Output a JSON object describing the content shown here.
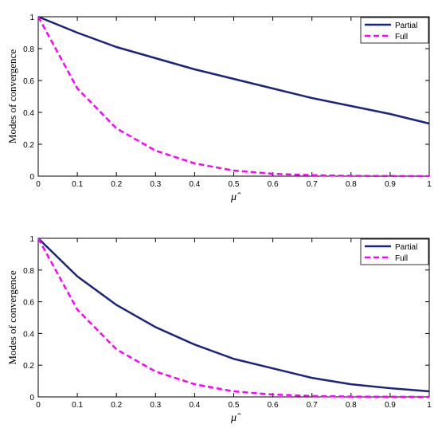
{
  "chart_data": [
    {
      "type": "line",
      "xlabel": "μ̂",
      "ylabel": "Modes of convergence",
      "xlim": [
        0,
        1
      ],
      "ylim": [
        0,
        1
      ],
      "xticks": [
        "0",
        "0.1",
        "0.2",
        "0.3",
        "0.4",
        "0.5",
        "0.6",
        "0.7",
        "0.8",
        "0.9",
        "1"
      ],
      "yticks": [
        "0",
        "0.2",
        "0.4",
        "0.6",
        "0.8",
        "1"
      ],
      "legend_position": "top-right",
      "x": [
        0,
        0.1,
        0.2,
        0.3,
        0.4,
        0.5,
        0.6,
        0.7,
        0.8,
        0.9,
        1.0
      ],
      "series": [
        {
          "name": "Partial",
          "color": "#1a237e",
          "style": "solid",
          "values": [
            1.0,
            0.9,
            0.81,
            0.74,
            0.67,
            0.61,
            0.55,
            0.49,
            0.44,
            0.39,
            0.33
          ]
        },
        {
          "name": "Full",
          "color": "#ff00ff",
          "style": "dashed",
          "values": [
            1.0,
            0.55,
            0.3,
            0.16,
            0.08,
            0.035,
            0.015,
            0.006,
            0.002,
            0.001,
            0.0
          ]
        }
      ]
    },
    {
      "type": "line",
      "xlabel": "μ̂",
      "ylabel": "Modes of convergence",
      "xlim": [
        0,
        1
      ],
      "ylim": [
        0,
        1
      ],
      "xticks": [
        "0",
        "0.1",
        "0.2",
        "0.3",
        "0.4",
        "0.5",
        "0.6",
        "0.7",
        "0.8",
        "0.9",
        "1"
      ],
      "yticks": [
        "0",
        "0.2",
        "0.4",
        "0.6",
        "0.8",
        "1"
      ],
      "legend_position": "top-right",
      "x": [
        0,
        0.1,
        0.2,
        0.3,
        0.4,
        0.5,
        0.6,
        0.7,
        0.8,
        0.9,
        1.0
      ],
      "series": [
        {
          "name": "Partial",
          "color": "#1a237e",
          "style": "solid",
          "values": [
            1.0,
            0.76,
            0.58,
            0.44,
            0.33,
            0.24,
            0.18,
            0.12,
            0.08,
            0.055,
            0.035
          ]
        },
        {
          "name": "Full",
          "color": "#ff00ff",
          "style": "dashed",
          "values": [
            1.0,
            0.55,
            0.3,
            0.16,
            0.08,
            0.035,
            0.015,
            0.006,
            0.002,
            0.001,
            0.0
          ]
        }
      ]
    }
  ]
}
